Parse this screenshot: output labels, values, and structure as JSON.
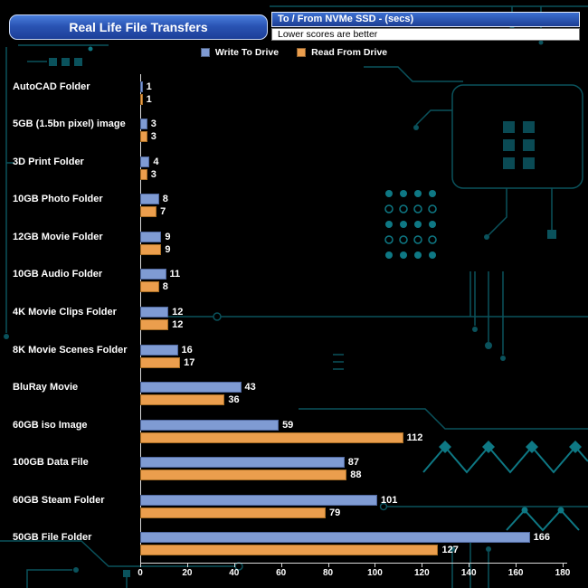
{
  "header": {
    "title": "Real Life File Transfers",
    "subtitle": "To /  From NVMe  SSD - (secs)",
    "note": "Lower scores are better"
  },
  "chart_data": {
    "type": "bar",
    "orientation": "horizontal",
    "title": "Real Life File Transfers",
    "subtitle": "To / From NVMe SSD - (secs)",
    "note": "Lower scores are better",
    "units": "seconds",
    "categories": [
      "AutoCAD Folder",
      "5GB (1.5bn pixel) image",
      "3D Print Folder",
      "10GB Photo Folder",
      "12GB Movie Folder",
      "10GB Audio Folder",
      "4K Movie Clips Folder",
      "8K Movie Scenes Folder",
      "BluRay Movie",
      "60GB iso Image",
      "100GB Data File",
      "60GB Steam Folder",
      "50GB File Folder"
    ],
    "series": [
      {
        "name": "Write To  Drive",
        "color": "#7f9bd3",
        "border": "#50689e",
        "values": [
          1,
          3,
          4,
          8,
          9,
          11,
          12,
          16,
          43,
          59,
          87,
          101,
          166
        ]
      },
      {
        "name": "Read From  Drive",
        "color": "#eb9e4d",
        "border": "#a96e24",
        "values": [
          1,
          3,
          3,
          7,
          9,
          8,
          12,
          17,
          36,
          112,
          88,
          79,
          127
        ]
      }
    ],
    "xlim": [
      0,
      180
    ],
    "xticks": [
      0,
      20,
      40,
      60,
      80,
      100,
      120,
      140,
      160,
      180
    ],
    "value_labels": true,
    "legend_position": "top",
    "grid": false
  },
  "colors": {
    "background": "#000000",
    "circuit_dim": "#0a525c",
    "circuit_bright": "#0f7c88",
    "axis": "#d9d9d9",
    "text": "#ffffff",
    "write_bar": "#7f9bd3",
    "read_bar": "#eb9e4d",
    "title_box_top": "#4a7fdd",
    "title_box_bottom": "#1d3f98"
  }
}
